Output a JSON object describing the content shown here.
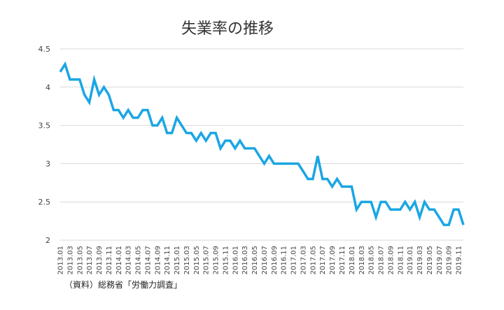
{
  "chart_data": {
    "type": "line",
    "title": "失業率の推移",
    "source": "（資料）総務省「労働力調査」",
    "xlabel": "",
    "ylabel": "",
    "ylim": [
      2,
      4.5
    ],
    "yticks": [
      "2",
      "2.5",
      "3",
      "3.5",
      "4",
      "4.5"
    ],
    "grid": true,
    "line_color": "#1aa6e4",
    "x_tick_labels": [
      "2013.01",
      "2013.03",
      "2013.05",
      "2013.07",
      "2013.09",
      "2013.11",
      "2014.01",
      "2014.03",
      "2014.05",
      "2014.07",
      "2014.09",
      "2014.11",
      "2015.01",
      "2015.03",
      "2015.05",
      "2015.07",
      "2015.09",
      "2015.11",
      "2016.01",
      "2016.03",
      "2016.05",
      "2016.07",
      "2016.09",
      "2016.11",
      "2017.01",
      "2017.03",
      "2017.05",
      "2017.07",
      "2017.09",
      "2017.11",
      "2018.01",
      "2018.03",
      "2018.05",
      "2018.07",
      "2018.09",
      "2018.11",
      "2019.01",
      "2019.03",
      "2019.05",
      "2019.07",
      "2019.09",
      "2019.11"
    ],
    "series": [
      {
        "values": [
          4.2,
          4.3,
          4.1,
          4.1,
          4.1,
          3.9,
          3.8,
          4.1,
          3.9,
          4.0,
          3.9,
          3.7,
          3.7,
          3.6,
          3.7,
          3.6,
          3.6,
          3.7,
          3.7,
          3.5,
          3.5,
          3.6,
          3.4,
          3.4,
          3.6,
          3.5,
          3.4,
          3.4,
          3.3,
          3.4,
          3.3,
          3.4,
          3.4,
          3.2,
          3.3,
          3.3,
          3.2,
          3.3,
          3.2,
          3.2,
          3.2,
          3.1,
          3.0,
          3.1,
          3.0,
          3.0,
          3.0,
          3.0,
          3.0,
          3.0,
          2.9,
          2.8,
          2.8,
          3.1,
          2.8,
          2.8,
          2.7,
          2.8,
          2.7,
          2.7,
          2.7,
          2.4,
          2.5,
          2.5,
          2.5,
          2.3,
          2.5,
          2.5,
          2.4,
          2.4,
          2.4,
          2.5,
          2.4,
          2.5,
          2.3,
          2.5,
          2.4,
          2.4,
          2.3,
          2.2,
          2.2,
          2.4,
          2.4,
          2.2
        ]
      }
    ]
  }
}
